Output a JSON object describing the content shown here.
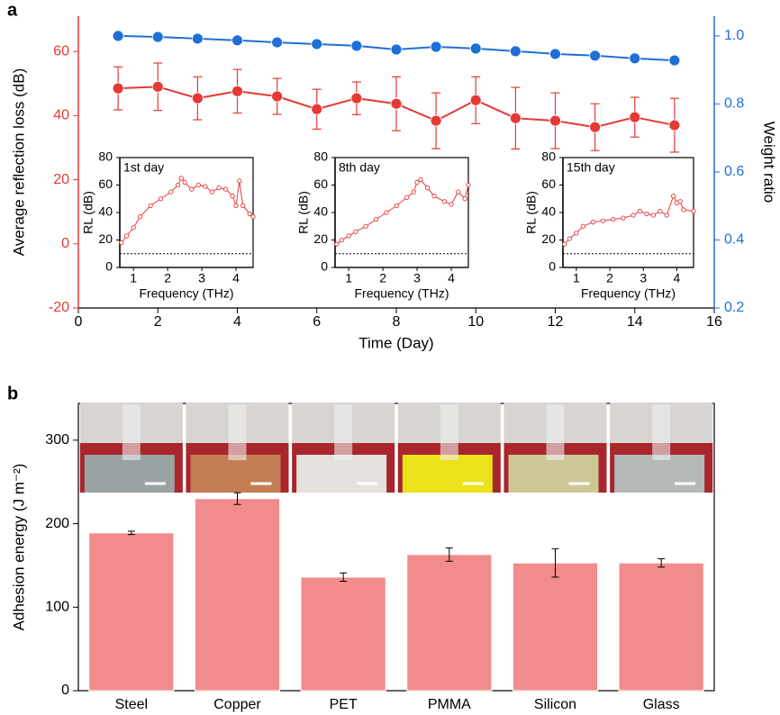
{
  "chart_data": [
    {
      "type": "line",
      "panel_label": "a",
      "xlabel": "Time (Day)",
      "ylabel": "Average reflection loss (dB)",
      "y2label": "Weight ratio",
      "x": [
        1,
        2,
        3,
        4,
        5,
        6,
        7,
        8,
        9,
        10,
        11,
        12,
        13,
        14,
        15
      ],
      "xlim": [
        0,
        16
      ],
      "xticks": [
        0,
        2,
        4,
        6,
        8,
        10,
        12,
        14,
        16
      ],
      "ylim": [
        -20,
        71
      ],
      "yticks": [
        -20,
        0,
        20,
        40,
        60
      ],
      "y2lim": [
        0.2,
        1.058
      ],
      "y2ticks": [
        0.2,
        0.4,
        0.6,
        0.8,
        {
          "value": 1,
          "label": "1.0"
        }
      ],
      "series": [
        {
          "color": "#e53935",
          "values": [
            48.5,
            49.0,
            45.4,
            47.6,
            46.0,
            42.0,
            45.4,
            43.7,
            38.4,
            44.8,
            39.2,
            38.4,
            36.4,
            39.5,
            37.0
          ],
          "errors": [
            6.7,
            7.4,
            6.7,
            6.8,
            5.6,
            6.2,
            5.1,
            8.4,
            8.7,
            7.3,
            9.6,
            8.7,
            7.3,
            6.2,
            8.4
          ]
        },
        {
          "color": "#1f6fd6",
          "axis": "y2",
          "values": [
            1.0,
            0.997,
            0.992,
            0.987,
            0.981,
            0.976,
            0.971,
            0.96,
            0.968,
            0.963,
            0.955,
            0.947,
            0.942,
            0.934,
            0.928
          ]
        }
      ]
    },
    {
      "type": "line",
      "annotation": "1st day",
      "xlabel": "Frequency (THz)",
      "ylabel": "RL (dB)",
      "x": [
        0.65,
        0.8,
        1.0,
        1.2,
        1.5,
        1.8,
        2.1,
        2.3,
        2.4,
        2.5,
        2.7,
        2.9,
        3.1,
        3.3,
        3.5,
        3.7,
        3.9,
        4.0,
        4.1,
        4.2,
        4.4,
        4.5
      ],
      "xlim": [
        0.6,
        4.5
      ],
      "xticks": [
        1,
        2,
        3,
        4
      ],
      "ylim": [
        0,
        80
      ],
      "yticks": [
        0,
        20,
        40,
        60,
        80
      ],
      "threshold": 10,
      "series": [
        {
          "color": "#e53935",
          "values": [
            18,
            23,
            29,
            37,
            45,
            50,
            55,
            60,
            65,
            62,
            57,
            60,
            59,
            55,
            58,
            57,
            52,
            45,
            63,
            45,
            39,
            37
          ]
        }
      ]
    },
    {
      "type": "line",
      "annotation": "8th day",
      "xlabel": "Frequency (THz)",
      "ylabel": "RL (dB)",
      "x": [
        0.65,
        0.8,
        1.0,
        1.2,
        1.5,
        1.8,
        2.1,
        2.4,
        2.7,
        2.9,
        3.0,
        3.1,
        3.3,
        3.5,
        3.8,
        4.0,
        4.2,
        4.4,
        4.5
      ],
      "xlim": [
        0.6,
        4.5
      ],
      "xticks": [
        1,
        2,
        3,
        4
      ],
      "ylim": [
        0,
        80
      ],
      "yticks": [
        0,
        20,
        40,
        60,
        80
      ],
      "threshold": 10,
      "series": [
        {
          "color": "#e53935",
          "values": [
            17,
            20,
            23,
            26,
            30,
            35,
            40,
            45,
            51,
            55,
            62,
            64,
            58,
            52,
            48,
            46,
            55,
            50,
            60
          ]
        }
      ]
    },
    {
      "type": "line",
      "annotation": "15th day",
      "xlabel": "Frequency (THz)",
      "ylabel": "RL (dB)",
      "x": [
        0.65,
        0.8,
        1.0,
        1.2,
        1.5,
        1.8,
        2.1,
        2.4,
        2.7,
        2.9,
        3.1,
        3.3,
        3.5,
        3.7,
        3.9,
        4.0,
        4.1,
        4.2,
        4.5
      ],
      "xlim": [
        0.6,
        4.5
      ],
      "xticks": [
        1,
        2,
        3,
        4
      ],
      "ylim": [
        0,
        80
      ],
      "yticks": [
        0,
        20,
        40,
        60,
        80
      ],
      "threshold": 10,
      "series": [
        {
          "color": "#e53935",
          "values": [
            17,
            21,
            25,
            30,
            33,
            34,
            35,
            36,
            38,
            41,
            39,
            38,
            41,
            38,
            52,
            47,
            48,
            42,
            41
          ]
        }
      ]
    },
    {
      "type": "bar",
      "panel_label": "b",
      "ylabel": "Adhesion energy (J m⁻²)",
      "categories": [
        "Steel",
        "Copper",
        "PET",
        "PMMA",
        "Silicon",
        "Glass"
      ],
      "values": [
        189,
        230,
        136,
        163,
        153,
        153
      ],
      "errors": [
        2,
        7,
        5,
        8,
        17,
        5
      ],
      "color": "#f28b8b",
      "ylim": [
        0,
        344
      ],
      "yticks": [
        0,
        100,
        200,
        300
      ]
    }
  ]
}
